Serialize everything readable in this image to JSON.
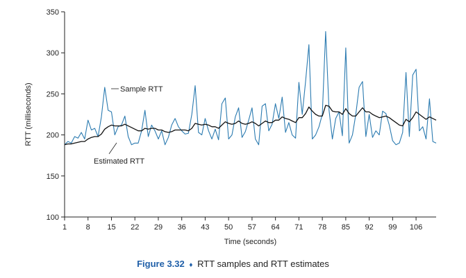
{
  "chart_data": {
    "type": "line",
    "title": "",
    "xlabel": "Time (seconds)",
    "ylabel": "RTT (milliseconds)",
    "xlim": [
      1,
      112
    ],
    "ylim": [
      100,
      350
    ],
    "xticks": [
      1,
      8,
      15,
      22,
      29,
      36,
      43,
      50,
      57,
      64,
      71,
      78,
      85,
      92,
      99,
      106
    ],
    "yticks": [
      100,
      150,
      200,
      250,
      300,
      350
    ],
    "grid": false,
    "series": [
      {
        "name": "Sample RTT",
        "color": "#2a7ab0",
        "x": [
          1,
          2,
          3,
          4,
          5,
          6,
          7,
          8,
          9,
          10,
          11,
          12,
          13,
          14,
          15,
          16,
          17,
          18,
          19,
          20,
          21,
          22,
          23,
          24,
          25,
          26,
          27,
          28,
          29,
          30,
          31,
          32,
          33,
          34,
          35,
          36,
          37,
          38,
          39,
          40,
          41,
          42,
          43,
          44,
          45,
          46,
          47,
          48,
          49,
          50,
          51,
          52,
          53,
          54,
          55,
          56,
          57,
          58,
          59,
          60,
          61,
          62,
          63,
          64,
          65,
          66,
          67,
          68,
          69,
          70,
          71,
          72,
          73,
          74,
          75,
          76,
          77,
          78,
          79,
          80,
          81,
          82,
          83,
          84,
          85,
          86,
          87,
          88,
          89,
          90,
          91,
          92,
          93,
          94,
          95,
          96,
          97,
          98,
          99,
          100,
          101,
          102,
          103,
          104,
          105,
          106,
          107,
          108,
          109,
          110,
          111,
          112
        ],
        "y": [
          188,
          192,
          190,
          198,
          196,
          203,
          195,
          218,
          206,
          208,
          198,
          222,
          258,
          230,
          228,
          200,
          210,
          212,
          223,
          198,
          188,
          190,
          190,
          205,
          230,
          198,
          212,
          205,
          195,
          205,
          188,
          197,
          212,
          220,
          210,
          205,
          201,
          202,
          225,
          260,
          203,
          200,
          220,
          205,
          195,
          207,
          194,
          238,
          245,
          195,
          200,
          222,
          233,
          197,
          204,
          218,
          233,
          195,
          188,
          235,
          238,
          205,
          213,
          238,
          220,
          246,
          203,
          215,
          200,
          196,
          264,
          225,
          265,
          310,
          195,
          200,
          210,
          225,
          326,
          230,
          195,
          220,
          228,
          199,
          306,
          190,
          200,
          225,
          258,
          265,
          198,
          225,
          197,
          205,
          200,
          229,
          226,
          212,
          193,
          188,
          190,
          203,
          276,
          198,
          273,
          280,
          205,
          210,
          195,
          244,
          192,
          190
        ],
        "style": "solid"
      },
      {
        "name": "Estimated RTT",
        "color": "#111111",
        "x": [
          1,
          2,
          3,
          4,
          5,
          6,
          7,
          8,
          9,
          10,
          11,
          12,
          13,
          14,
          15,
          16,
          17,
          18,
          19,
          20,
          21,
          22,
          23,
          24,
          25,
          26,
          27,
          28,
          29,
          30,
          31,
          32,
          33,
          34,
          35,
          36,
          37,
          38,
          39,
          40,
          41,
          42,
          43,
          44,
          45,
          46,
          47,
          48,
          49,
          50,
          51,
          52,
          53,
          54,
          55,
          56,
          57,
          58,
          59,
          60,
          61,
          62,
          63,
          64,
          65,
          66,
          67,
          68,
          69,
          70,
          71,
          72,
          73,
          74,
          75,
          76,
          77,
          78,
          79,
          80,
          81,
          82,
          83,
          84,
          85,
          86,
          87,
          88,
          89,
          90,
          91,
          92,
          93,
          94,
          95,
          96,
          97,
          98,
          99,
          100,
          101,
          102,
          103,
          104,
          105,
          106,
          107,
          108,
          109,
          110,
          111,
          112
        ],
        "y": [
          188,
          189,
          189,
          190,
          191,
          192,
          192,
          195,
          197,
          198,
          198,
          201,
          207,
          210,
          212,
          211,
          211,
          211,
          213,
          211,
          209,
          207,
          205,
          205,
          208,
          207,
          208,
          208,
          206,
          206,
          204,
          203,
          204,
          206,
          206,
          206,
          206,
          205,
          208,
          214,
          213,
          212,
          213,
          212,
          210,
          210,
          208,
          212,
          216,
          214,
          213,
          214,
          217,
          214,
          213,
          214,
          216,
          214,
          211,
          214,
          217,
          215,
          215,
          218,
          218,
          222,
          220,
          219,
          217,
          215,
          221,
          221,
          226,
          234,
          229,
          225,
          223,
          223,
          236,
          235,
          229,
          228,
          228,
          225,
          232,
          226,
          223,
          223,
          228,
          233,
          228,
          228,
          225,
          223,
          221,
          222,
          223,
          221,
          218,
          215,
          212,
          211,
          219,
          216,
          221,
          228,
          225,
          222,
          219,
          222,
          220,
          218
        ],
        "style": "solid"
      }
    ],
    "annotations": [
      {
        "text": "Sample RTT",
        "series": "Sample RTT"
      },
      {
        "text": "Estimated RTT",
        "series": "Estimated RTT"
      }
    ]
  },
  "caption": {
    "figure_label": "Figure 3.32",
    "separator": "♦",
    "text": "RTT samples and RTT estimates"
  }
}
